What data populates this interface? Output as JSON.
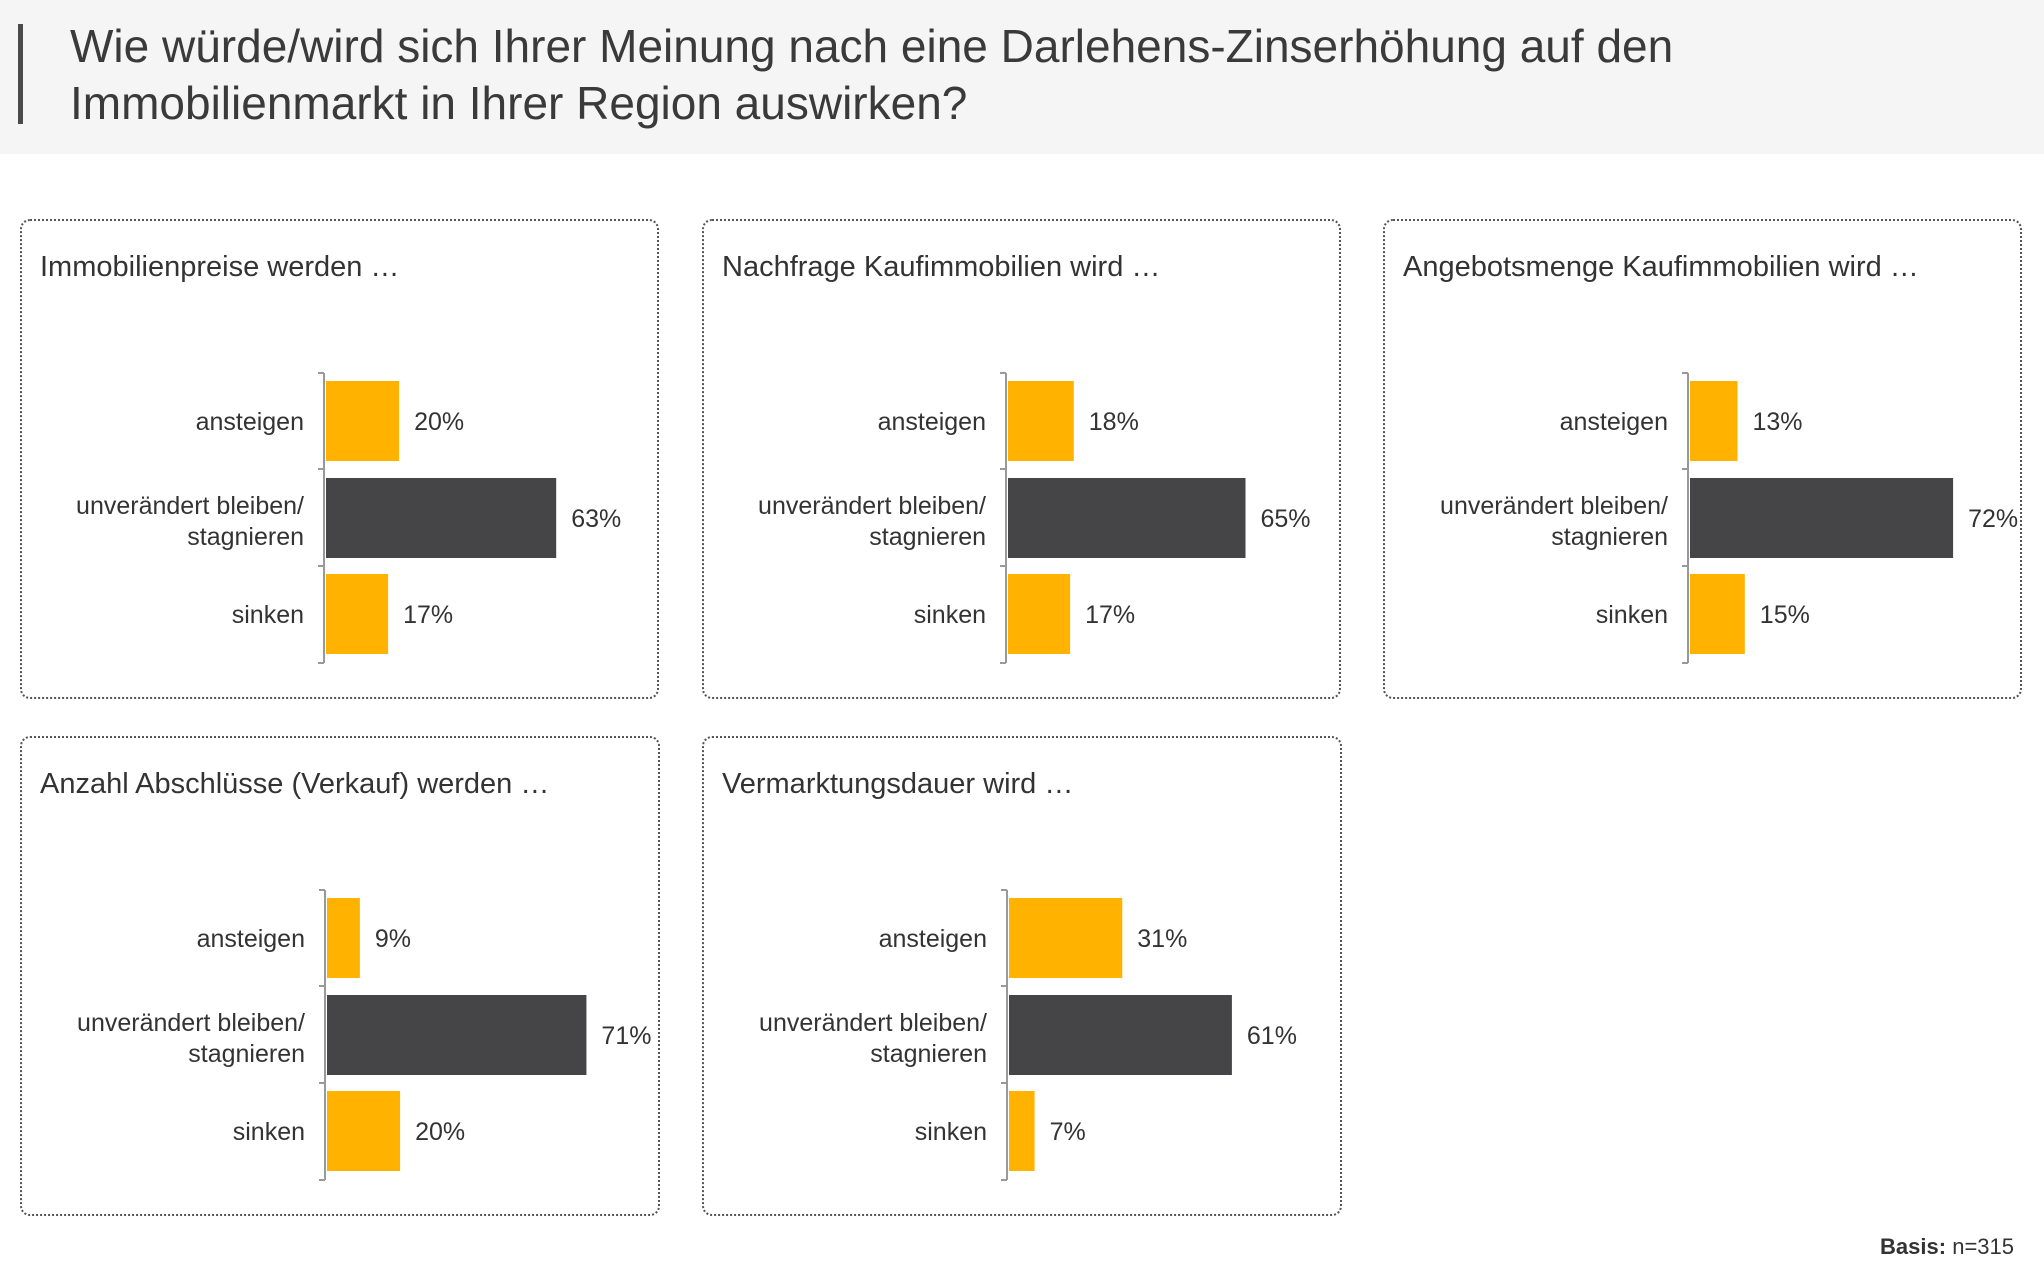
{
  "header": {
    "title": "Wie würde/wird sich Ihrer Meinung nach eine Darlehens-Zinserhöhung auf den Immobilienmarkt in Ihrer Region auswirken?"
  },
  "colors": {
    "yellow": "#FFB300",
    "dark": "#454547",
    "axis": "#999999"
  },
  "chart_data": [
    {
      "type": "bar",
      "orientation": "horizontal",
      "title": "Immobilienpreise werden …",
      "categories": [
        "ansteigen",
        "unverändert bleiben/ stagnieren",
        "sinken"
      ],
      "values": [
        20,
        63,
        17
      ],
      "labels": [
        "20%",
        "63%",
        "17%"
      ],
      "unit": "%"
    },
    {
      "type": "bar",
      "orientation": "horizontal",
      "title": "Nachfrage Kaufimmobilien wird …",
      "categories": [
        "ansteigen",
        "unverändert bleiben/ stagnieren",
        "sinken"
      ],
      "values": [
        18,
        65,
        17
      ],
      "labels": [
        "18%",
        "65%",
        "17%"
      ],
      "unit": "%"
    },
    {
      "type": "bar",
      "orientation": "horizontal",
      "title": "Angebotsmenge Kaufimmobilien wird …",
      "categories": [
        "ansteigen",
        "unverändert bleiben/ stagnieren",
        "sinken"
      ],
      "values": [
        13,
        72,
        15
      ],
      "labels": [
        "13%",
        "72%",
        "15%"
      ],
      "unit": "%"
    },
    {
      "type": "bar",
      "orientation": "horizontal",
      "title": "Anzahl Abschlüsse (Verkauf) werden …",
      "categories": [
        "ansteigen",
        "unverändert bleiben/ stagnieren",
        "sinken"
      ],
      "values": [
        9,
        71,
        20
      ],
      "labels": [
        "9%",
        "71%",
        "20%"
      ],
      "unit": "%"
    },
    {
      "type": "bar",
      "orientation": "horizontal",
      "title": "Vermarktungsdauer wird …",
      "categories": [
        "ansteigen",
        "unverändert bleiben/ stagnieren",
        "sinken"
      ],
      "values": [
        31,
        61,
        7
      ],
      "labels": [
        "31%",
        "61%",
        "7%"
      ],
      "unit": "%"
    }
  ],
  "footer": {
    "basis_label": "Basis:",
    "basis_value": "n=315"
  }
}
